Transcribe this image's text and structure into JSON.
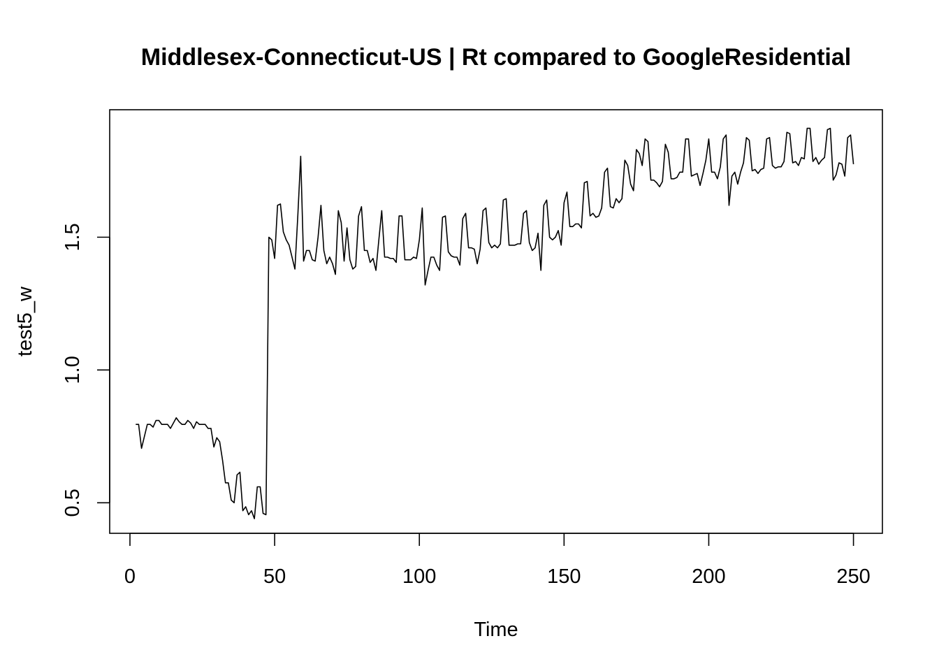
{
  "chart_data": {
    "type": "line",
    "title": "Middlesex-Connecticut-US | Rt compared to GoogleResidential",
    "xlabel": "Time",
    "ylabel": "test5_w",
    "xlim": [
      -7,
      260
    ],
    "ylim": [
      0.385,
      1.98
    ],
    "x_ticks": [
      0,
      50,
      100,
      150,
      200,
      250
    ],
    "x_tick_labels": [
      "0",
      "50",
      "100",
      "150",
      "200",
      "250"
    ],
    "y_ticks": [
      0.5,
      1.0,
      1.5
    ],
    "y_tick_labels": [
      "0.5",
      "1.0",
      "1.5"
    ],
    "grid": false,
    "legend": "none",
    "series": [
      {
        "x_start": 2,
        "values": [
          0.795,
          0.795,
          0.705,
          0.75,
          0.795,
          0.795,
          0.785,
          0.81,
          0.81,
          0.795,
          0.795,
          0.795,
          0.78,
          0.8,
          0.82,
          0.805,
          0.795,
          0.795,
          0.81,
          0.8,
          0.78,
          0.805,
          0.795,
          0.795,
          0.795,
          0.78,
          0.78,
          0.71,
          0.745,
          0.73,
          0.66,
          0.575,
          0.575,
          0.51,
          0.5,
          0.605,
          0.615,
          0.47,
          0.485,
          0.455,
          0.47,
          0.44,
          0.56,
          0.56,
          0.46,
          0.455,
          1.5,
          1.49,
          1.42,
          1.62,
          1.625,
          1.52,
          1.49,
          1.47,
          1.425,
          1.38,
          1.58,
          1.805,
          1.41,
          1.45,
          1.45,
          1.415,
          1.41,
          1.5,
          1.62,
          1.45,
          1.4,
          1.425,
          1.4,
          1.36,
          1.6,
          1.555,
          1.41,
          1.535,
          1.415,
          1.38,
          1.39,
          1.58,
          1.615,
          1.45,
          1.45,
          1.405,
          1.42,
          1.375,
          1.49,
          1.6,
          1.425,
          1.425,
          1.42,
          1.42,
          1.405,
          1.58,
          1.58,
          1.415,
          1.415,
          1.415,
          1.425,
          1.42,
          1.49,
          1.61,
          1.32,
          1.375,
          1.425,
          1.425,
          1.395,
          1.375,
          1.575,
          1.58,
          1.445,
          1.43,
          1.425,
          1.425,
          1.395,
          1.57,
          1.59,
          1.46,
          1.46,
          1.455,
          1.4,
          1.455,
          1.6,
          1.61,
          1.48,
          1.46,
          1.47,
          1.46,
          1.475,
          1.64,
          1.645,
          1.47,
          1.47,
          1.47,
          1.475,
          1.475,
          1.59,
          1.6,
          1.48,
          1.45,
          1.46,
          1.515,
          1.375,
          1.62,
          1.64,
          1.5,
          1.49,
          1.5,
          1.525,
          1.47,
          1.63,
          1.67,
          1.54,
          1.54,
          1.55,
          1.55,
          1.535,
          1.705,
          1.71,
          1.58,
          1.59,
          1.575,
          1.58,
          1.61,
          1.745,
          1.76,
          1.615,
          1.61,
          1.645,
          1.63,
          1.645,
          1.79,
          1.77,
          1.7,
          1.675,
          1.83,
          1.815,
          1.77,
          1.87,
          1.86,
          1.715,
          1.715,
          1.705,
          1.69,
          1.71,
          1.85,
          1.82,
          1.72,
          1.72,
          1.725,
          1.745,
          1.745,
          1.87,
          1.87,
          1.73,
          1.735,
          1.74,
          1.695,
          1.74,
          1.79,
          1.87,
          1.745,
          1.745,
          1.72,
          1.765,
          1.87,
          1.885,
          1.62,
          1.73,
          1.745,
          1.7,
          1.745,
          1.78,
          1.875,
          1.865,
          1.75,
          1.755,
          1.74,
          1.755,
          1.76,
          1.87,
          1.875,
          1.77,
          1.76,
          1.765,
          1.765,
          1.785,
          1.895,
          1.89,
          1.78,
          1.785,
          1.77,
          1.8,
          1.795,
          1.91,
          1.91,
          1.785,
          1.8,
          1.775,
          1.79,
          1.8,
          1.905,
          1.91,
          1.715,
          1.735,
          1.78,
          1.775,
          1.73,
          1.875,
          1.885,
          1.775
        ]
      }
    ]
  }
}
